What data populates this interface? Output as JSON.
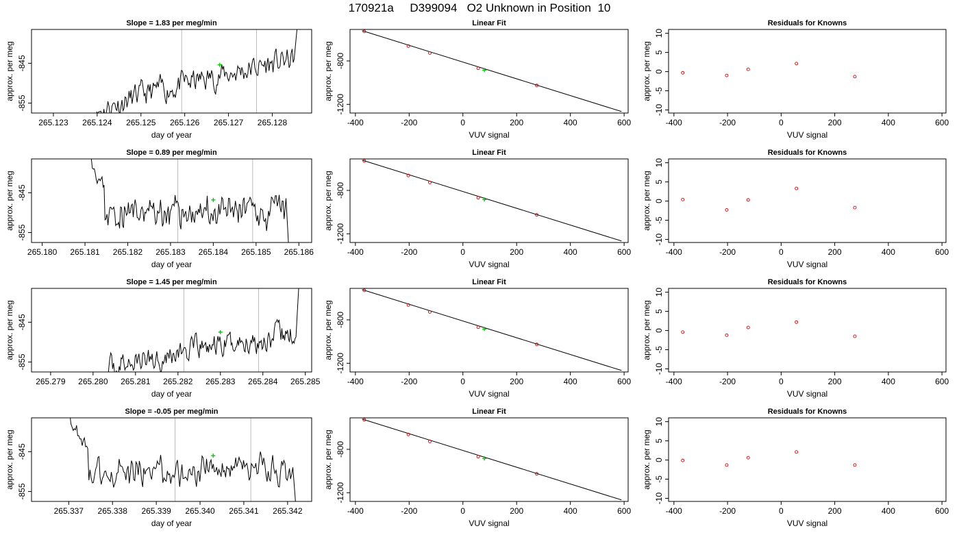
{
  "page": {
    "title": "170921a     D399094   O2 Unknown in Position  10"
  },
  "chart_data": [
    {
      "type": "line",
      "title": "Slope =  1.83  per meg/min",
      "xlabel": "day of year",
      "ylabel": "approx. per meg",
      "xlim": [
        265.1225,
        265.1289
      ],
      "ylim": [
        -857.5,
        -836.5
      ],
      "xticks": [
        "265.123",
        "265.124",
        "265.125",
        "265.126",
        "265.127",
        "265.128"
      ],
      "yticks": [
        "-845",
        "-855"
      ],
      "vlines": [
        265.12593,
        265.12764
      ],
      "seed": 11,
      "start_x": 265.1239,
      "end_x": 265.1285,
      "start_y": -858.0,
      "end_y": -844.0,
      "ramp_end": null,
      "final_y": -836.0,
      "marker": [
        265.1268,
        -845.4
      ]
    },
    {
      "type": "scatter-fit",
      "title": "Linear Fit",
      "xlabel": "VUV signal",
      "ylabel": "approx. per meg",
      "xlim": [
        -420,
        615
      ],
      "ylim": [
        -1280,
        -510
      ],
      "xticks": [
        "-400",
        "-200",
        "0",
        "200",
        "400",
        "600"
      ],
      "yticks": [
        "-800",
        "-1200"
      ],
      "points": [
        [
          -367,
          -528
        ],
        [
          -203,
          -663
        ],
        [
          -123,
          -727
        ],
        [
          57,
          -868
        ],
        [
          275,
          -1026
        ]
      ],
      "fit_line": [
        [
          -375,
          -521
        ],
        [
          590,
          -1266
        ]
      ],
      "marker": [
        80,
        -884
      ]
    },
    {
      "type": "scatter",
      "title": "Residuals for Knowns",
      "xlabel": "VUV signal",
      "ylabel": "approx. per meg",
      "xlim": [
        -420,
        615
      ],
      "ylim": [
        -10.8,
        11
      ],
      "xticks": [
        "-400",
        "-200",
        "0",
        "200",
        "400",
        "600"
      ],
      "yticks": [
        "10",
        "5",
        "0",
        "-5",
        "-10"
      ],
      "points": [
        [
          -367,
          -0.3
        ],
        [
          -203,
          -1.0
        ],
        [
          -123,
          0.6
        ],
        [
          57,
          2.1
        ],
        [
          275,
          -1.3
        ]
      ]
    },
    {
      "type": "line",
      "title": "Slope =  0.89  per meg/min",
      "xlabel": "day of year",
      "ylabel": "approx. per meg",
      "xlim": [
        265.17975,
        265.1863
      ],
      "ylim": [
        -857.5,
        -836.5
      ],
      "xticks": [
        "265.180",
        "265.181",
        "265.182",
        "265.183",
        "265.184",
        "265.185",
        "265.186"
      ],
      "yticks": [
        "-845",
        "-855"
      ],
      "vlines": [
        265.18317,
        265.18492
      ],
      "seed": 23,
      "start_x": 265.18115,
      "end_x": 265.1857,
      "start_y": -835.0,
      "end_y": -847.0,
      "ramp_end": 265.18145,
      "final_y": -860.0,
      "marker": [
        265.184,
        -846.8
      ]
    },
    {
      "type": "scatter-fit",
      "title": "Linear Fit",
      "xlabel": "VUV signal",
      "ylabel": "approx. per meg",
      "xlim": [
        -420,
        615
      ],
      "ylim": [
        -1280,
        -510
      ],
      "xticks": [
        "-400",
        "-200",
        "0",
        "200",
        "400",
        "600"
      ],
      "yticks": [
        "-800",
        "-1200"
      ],
      "points": [
        [
          -367,
          -528
        ],
        [
          -203,
          -663
        ],
        [
          -123,
          -727
        ],
        [
          57,
          -868
        ],
        [
          275,
          -1026
        ]
      ],
      "fit_line": [
        [
          -375,
          -521
        ],
        [
          590,
          -1266
        ]
      ],
      "marker": [
        80,
        -884
      ]
    },
    {
      "type": "scatter",
      "title": "Residuals for Knowns",
      "xlabel": "VUV signal",
      "ylabel": "approx. per meg",
      "xlim": [
        -420,
        615
      ],
      "ylim": [
        -10.8,
        11
      ],
      "xticks": [
        "-400",
        "-200",
        "0",
        "200",
        "400",
        "600"
      ],
      "yticks": [
        "10",
        "5",
        "0",
        "-5",
        "-10"
      ],
      "points": [
        [
          -367,
          0.4
        ],
        [
          -203,
          -2.3
        ],
        [
          -123,
          0.3
        ],
        [
          57,
          3.3
        ],
        [
          275,
          -1.7
        ]
      ]
    },
    {
      "type": "line",
      "title": "Slope =  1.45  per meg/min",
      "xlabel": "day of year",
      "ylabel": "approx. per meg",
      "xlim": [
        265.27855,
        265.28515
      ],
      "ylim": [
        -857.5,
        -836.5
      ],
      "xticks": [
        "265.279",
        "265.280",
        "265.281",
        "265.282",
        "265.283",
        "265.284",
        "265.285"
      ],
      "yticks": [
        "-845",
        "-855"
      ],
      "vlines": [
        265.28214,
        265.2839
      ],
      "seed": 37,
      "start_x": 265.28035,
      "end_x": 265.28478,
      "start_y": -857.0,
      "end_y": -848.0,
      "ramp_end": null,
      "final_y": -836.0,
      "marker": [
        265.283,
        -847.5
      ]
    },
    {
      "type": "scatter-fit",
      "title": "Linear Fit",
      "xlabel": "VUV signal",
      "ylabel": "approx. per meg",
      "xlim": [
        -420,
        615
      ],
      "ylim": [
        -1280,
        -510
      ],
      "xticks": [
        "-400",
        "-200",
        "0",
        "200",
        "400",
        "600"
      ],
      "yticks": [
        "-800",
        "-1200"
      ],
      "points": [
        [
          -367,
          -528
        ],
        [
          -203,
          -663
        ],
        [
          -123,
          -727
        ],
        [
          57,
          -868
        ],
        [
          275,
          -1026
        ]
      ],
      "fit_line": [
        [
          -375,
          -521
        ],
        [
          590,
          -1266
        ]
      ],
      "marker": [
        80,
        -884
      ]
    },
    {
      "type": "scatter",
      "title": "Residuals for Knowns",
      "xlabel": "VUV signal",
      "ylabel": "approx. per meg",
      "xlim": [
        -420,
        615
      ],
      "ylim": [
        -10.8,
        11
      ],
      "xticks": [
        "-400",
        "-200",
        "0",
        "200",
        "400",
        "600"
      ],
      "yticks": [
        "10",
        "5",
        "0",
        "-5",
        "-10"
      ],
      "points": [
        [
          -367,
          -0.4
        ],
        [
          -203,
          -1.2
        ],
        [
          -123,
          0.8
        ],
        [
          57,
          2.2
        ],
        [
          275,
          -1.5
        ]
      ]
    },
    {
      "type": "line",
      "title": "Slope =  -0.05  per meg/min",
      "xlabel": "day of year",
      "ylabel": "approx. per meg",
      "xlim": [
        265.33615,
        265.34255
      ],
      "ylim": [
        -857.5,
        -836.5
      ],
      "xticks": [
        "265.337",
        "265.338",
        "265.339",
        "265.340",
        "265.341",
        "265.342"
      ],
      "yticks": [
        "-845",
        "-855"
      ],
      "vlines": [
        265.33943,
        265.34116
      ],
      "seed": 53,
      "start_x": 265.337,
      "end_x": 265.34212,
      "start_y": -835.0,
      "end_y": -847.0,
      "ramp_end": 265.33745,
      "final_y": -860.0,
      "marker": [
        265.3403,
        -846.0
      ]
    },
    {
      "type": "scatter-fit",
      "title": "Linear Fit",
      "xlabel": "VUV signal",
      "ylabel": "approx. per meg",
      "xlim": [
        -420,
        615
      ],
      "ylim": [
        -1280,
        -510
      ],
      "xticks": [
        "-400",
        "-200",
        "0",
        "200",
        "400",
        "600"
      ],
      "yticks": [
        "-800",
        "-1200"
      ],
      "points": [
        [
          -367,
          -528
        ],
        [
          -203,
          -663
        ],
        [
          -123,
          -727
        ],
        [
          57,
          -868
        ],
        [
          275,
          -1026
        ]
      ],
      "fit_line": [
        [
          -375,
          -521
        ],
        [
          590,
          -1266
        ]
      ],
      "marker": [
        80,
        -884
      ]
    },
    {
      "type": "scatter",
      "title": "Residuals for Knowns",
      "xlabel": "VUV signal",
      "ylabel": "approx. per meg",
      "xlim": [
        -420,
        615
      ],
      "ylim": [
        -10.8,
        11
      ],
      "xticks": [
        "-400",
        "-200",
        "0",
        "200",
        "400",
        "600"
      ],
      "yticks": [
        "10",
        "5",
        "0",
        "-5",
        "-10"
      ],
      "points": [
        [
          -367,
          -0.1
        ],
        [
          -203,
          -1.3
        ],
        [
          -123,
          0.6
        ],
        [
          57,
          2.1
        ],
        [
          275,
          -1.3
        ]
      ]
    }
  ],
  "colors": {
    "line": "#000000",
    "points": "#cc0000",
    "marker": "#00cc00",
    "vline": "#bbbbbb",
    "axis": "#000000"
  }
}
